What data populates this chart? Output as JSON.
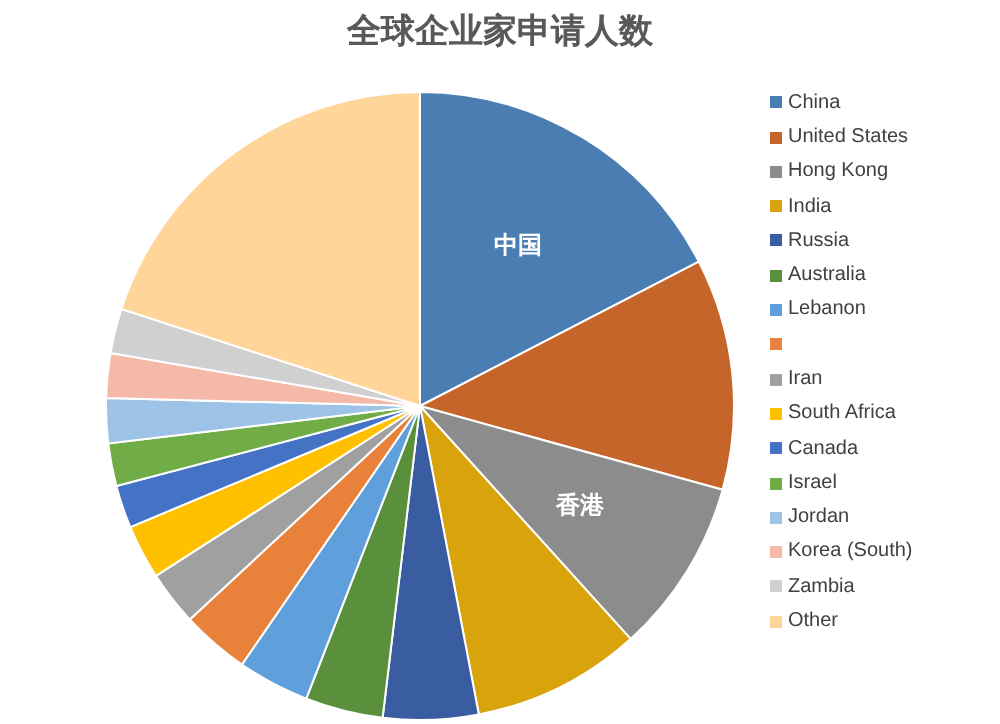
{
  "chart_data": {
    "type": "pie",
    "title": "全球企业家申请人数",
    "categories": [
      "China",
      "United States",
      "Hong Kong",
      "India",
      "Russia",
      "Australia",
      "Lebanon",
      null,
      "Iran",
      "South Africa",
      "Canada",
      "Israel",
      "Jordan",
      "Korea (South)",
      "Zambia",
      "Other"
    ],
    "values": [
      17.4,
      11.9,
      9,
      8.7,
      4.9,
      4,
      3.7,
      3.5,
      2.8,
      2.8,
      2.2,
      2.2,
      2.3,
      2.3,
      2.3,
      20
    ],
    "colors": [
      "#4a7eb3",
      "#c5652a",
      "#8c8c8c",
      "#d9a30c",
      "#3a5ca0",
      "#5a8f3c",
      "#5fa0dc",
      "#e8823a",
      "#a0a0a0",
      "#ffc000",
      "#4472c4",
      "#70ad47",
      "#9dc3e6",
      "#f4b9a8",
      "#d0d0d0",
      "#ffd59a"
    ],
    "annotations": [
      {
        "text": "中国",
        "x": "China"
      },
      {
        "text": "香港",
        "x": "Hong Kong"
      }
    ],
    "legend": "right"
  }
}
